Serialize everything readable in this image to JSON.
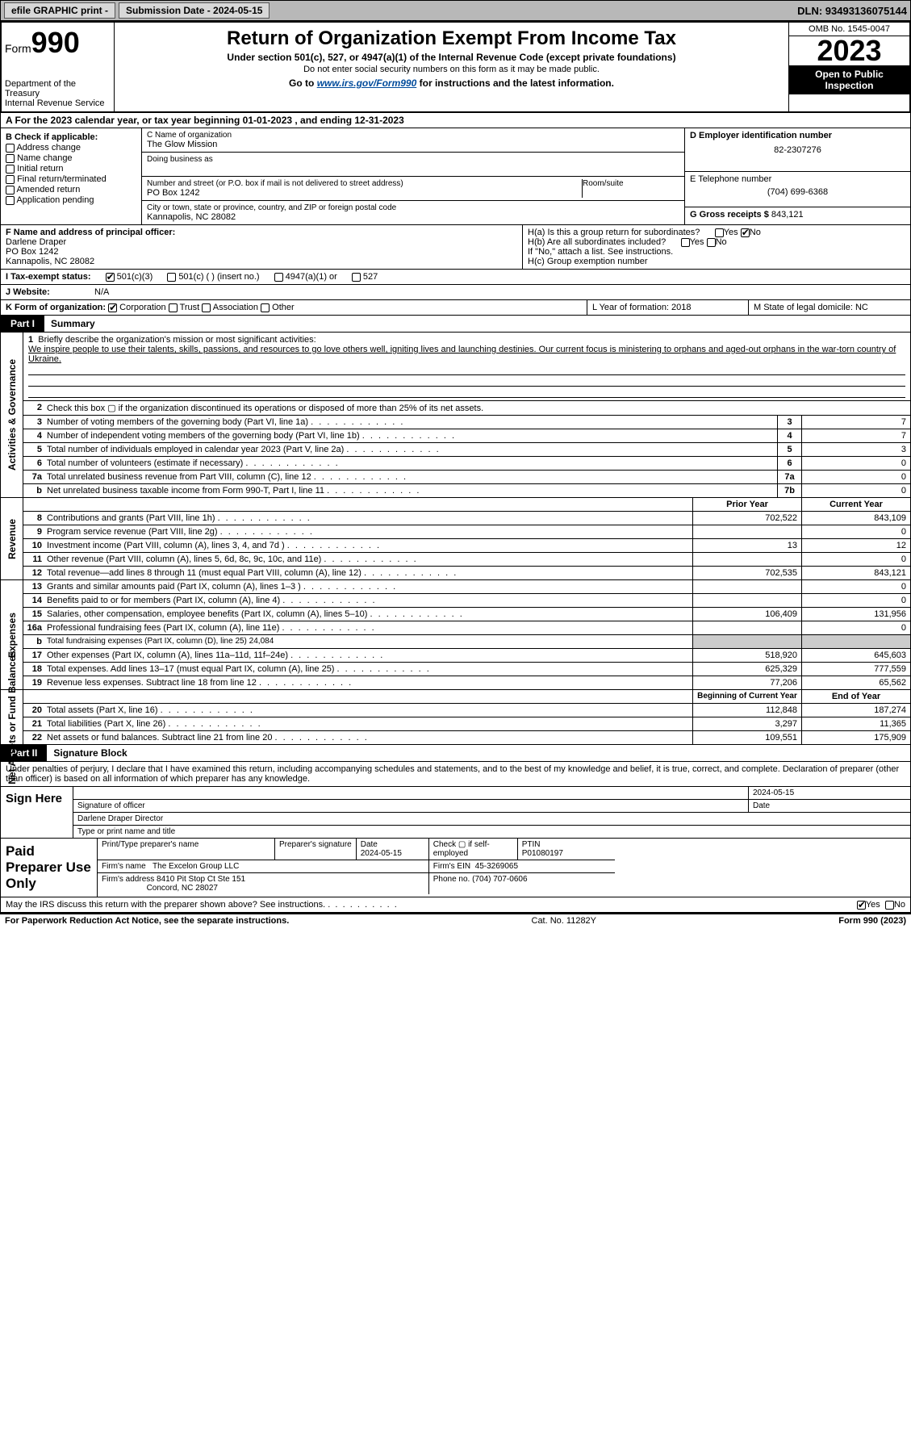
{
  "topbar": {
    "efile": "efile GRAPHIC print -",
    "submission": "Submission Date - 2024-05-15",
    "dln": "DLN: 93493136075144"
  },
  "header": {
    "form_word": "Form",
    "form_num": "990",
    "dept": "Department of the Treasury\nInternal Revenue Service",
    "title": "Return of Organization Exempt From Income Tax",
    "sub": "Under section 501(c), 527, or 4947(a)(1) of the Internal Revenue Code (except private foundations)",
    "note": "Do not enter social security numbers on this form as it may be made public.",
    "goto_pre": "Go to ",
    "goto_link": "www.irs.gov/Form990",
    "goto_post": " for instructions and the latest information.",
    "omb": "OMB No. 1545-0047",
    "year": "2023",
    "open": "Open to Public Inspection"
  },
  "rowA": "A  For the 2023 calendar year, or tax year beginning 01-01-2023    , and ending 12-31-2023",
  "boxB": {
    "title": "B Check if applicable:",
    "opts": [
      "Address change",
      "Name change",
      "Initial return",
      "Final return/terminated",
      "Amended return",
      "Application pending"
    ]
  },
  "boxC": {
    "name_lbl": "C Name of organization",
    "name": "The Glow Mission",
    "dba_lbl": "Doing business as",
    "street_lbl": "Number and street (or P.O. box if mail is not delivered to street address)",
    "street": "PO Box 1242",
    "room_lbl": "Room/suite",
    "city_lbl": "City or town, state or province, country, and ZIP or foreign postal code",
    "city": "Kannapolis, NC  28082"
  },
  "boxD": {
    "lbl": "D Employer identification number",
    "val": "82-2307276"
  },
  "boxE": {
    "lbl": "E Telephone number",
    "val": "(704) 699-6368"
  },
  "boxG": {
    "lbl": "G Gross receipts $",
    "val": "843,121"
  },
  "boxF": {
    "lbl": "F  Name and address of principal officer:",
    "name": "Darlene Draper",
    "street": "PO Box 1242",
    "city": "Kannapolis, NC  28082"
  },
  "boxH": {
    "a": "H(a)  Is this a group return for subordinates?",
    "b": "H(b)  Are all subordinates included?",
    "b_note": "If \"No,\" attach a list. See instructions.",
    "c": "H(c)  Group exemption number"
  },
  "rowI": {
    "lbl": "I   Tax-exempt status:",
    "o1": "501(c)(3)",
    "o2": "501(c) (  ) (insert no.)",
    "o3": "4947(a)(1) or",
    "o4": "527"
  },
  "rowJ": {
    "lbl": "J   Website:",
    "val": "N/A"
  },
  "rowK": {
    "lbl": "K Form of organization:",
    "o1": "Corporation",
    "o2": "Trust",
    "o3": "Association",
    "o4": "Other",
    "L": "L Year of formation: 2018",
    "M": "M State of legal domicile: NC"
  },
  "part1": {
    "tag": "Part I",
    "title": "Summary"
  },
  "mission": {
    "num": "1",
    "prompt": "Briefly describe the organization's mission or most significant activities:",
    "text": "We inspire people to use their talents, skills, passions, and resources to go love others well, igniting lives and launching destinies. Our current focus is ministering to orphans and aged-out orphans in the war-torn country of Ukraine."
  },
  "vlabels": {
    "gov": "Activities & Governance",
    "rev": "Revenue",
    "exp": "Expenses",
    "net": "Net Assets or Fund Balances"
  },
  "gov_lines": [
    {
      "n": "2",
      "d": "Check this box ▢ if the organization discontinued its operations or disposed of more than 25% of its net assets."
    },
    {
      "n": "3",
      "d": "Number of voting members of the governing body (Part VI, line 1a)",
      "box": "3",
      "v": "7"
    },
    {
      "n": "4",
      "d": "Number of independent voting members of the governing body (Part VI, line 1b)",
      "box": "4",
      "v": "7"
    },
    {
      "n": "5",
      "d": "Total number of individuals employed in calendar year 2023 (Part V, line 2a)",
      "box": "5",
      "v": "3"
    },
    {
      "n": "6",
      "d": "Total number of volunteers (estimate if necessary)",
      "box": "6",
      "v": "0"
    },
    {
      "n": "7a",
      "d": "Total unrelated business revenue from Part VIII, column (C), line 12",
      "box": "7a",
      "v": "0"
    },
    {
      "n": "b",
      "d": "Net unrelated business taxable income from Form 990-T, Part I, line 11",
      "box": "7b",
      "v": "0"
    }
  ],
  "col_hdrs": {
    "prior": "Prior Year",
    "current": "Current Year"
  },
  "rev_lines": [
    {
      "n": "8",
      "d": "Contributions and grants (Part VIII, line 1h)",
      "p": "702,522",
      "c": "843,109"
    },
    {
      "n": "9",
      "d": "Program service revenue (Part VIII, line 2g)",
      "p": "",
      "c": "0"
    },
    {
      "n": "10",
      "d": "Investment income (Part VIII, column (A), lines 3, 4, and 7d )",
      "p": "13",
      "c": "12"
    },
    {
      "n": "11",
      "d": "Other revenue (Part VIII, column (A), lines 5, 6d, 8c, 9c, 10c, and 11e)",
      "p": "",
      "c": "0"
    },
    {
      "n": "12",
      "d": "Total revenue—add lines 8 through 11 (must equal Part VIII, column (A), line 12)",
      "p": "702,535",
      "c": "843,121"
    }
  ],
  "exp_lines": [
    {
      "n": "13",
      "d": "Grants and similar amounts paid (Part IX, column (A), lines 1–3 )",
      "p": "",
      "c": "0"
    },
    {
      "n": "14",
      "d": "Benefits paid to or for members (Part IX, column (A), line 4)",
      "p": "",
      "c": "0"
    },
    {
      "n": "15",
      "d": "Salaries, other compensation, employee benefits (Part IX, column (A), lines 5–10)",
      "p": "106,409",
      "c": "131,956"
    },
    {
      "n": "16a",
      "d": "Professional fundraising fees (Part IX, column (A), line 11e)",
      "p": "",
      "c": "0"
    },
    {
      "n": "b",
      "d": "Total fundraising expenses (Part IX, column (D), line 25) 24,084",
      "gray": true
    },
    {
      "n": "17",
      "d": "Other expenses (Part IX, column (A), lines 11a–11d, 11f–24e)",
      "p": "518,920",
      "c": "645,603"
    },
    {
      "n": "18",
      "d": "Total expenses. Add lines 13–17 (must equal Part IX, column (A), line 25)",
      "p": "625,329",
      "c": "777,559"
    },
    {
      "n": "19",
      "d": "Revenue less expenses. Subtract line 18 from line 12",
      "p": "77,206",
      "c": "65,562"
    }
  ],
  "net_hdrs": {
    "beg": "Beginning of Current Year",
    "end": "End of Year"
  },
  "net_lines": [
    {
      "n": "20",
      "d": "Total assets (Part X, line 16)",
      "p": "112,848",
      "c": "187,274"
    },
    {
      "n": "21",
      "d": "Total liabilities (Part X, line 26)",
      "p": "3,297",
      "c": "11,365"
    },
    {
      "n": "22",
      "d": "Net assets or fund balances. Subtract line 21 from line 20",
      "p": "109,551",
      "c": "175,909"
    }
  ],
  "part2": {
    "tag": "Part II",
    "title": "Signature Block"
  },
  "sig_text": "Under penalties of perjury, I declare that I have examined this return, including accompanying schedules and statements, and to the best of my knowledge and belief, it is true, correct, and complete. Declaration of preparer (other than officer) is based on all information of which preparer has any knowledge.",
  "sign": {
    "lbl": "Sign Here",
    "date": "2024-05-15",
    "sig_lbl": "Signature of officer",
    "name": "Darlene Draper  Director",
    "type_lbl": "Type or print name and title",
    "date_lbl": "Date"
  },
  "paid": {
    "lbl": "Paid Preparer Use Only",
    "print_lbl": "Print/Type preparer's name",
    "sig_lbl": "Preparer's signature",
    "date_lbl": "Date",
    "date": "2024-05-15",
    "check_lbl": "Check ▢ if self-employed",
    "ptin_lbl": "PTIN",
    "ptin": "P01080197",
    "firm_name_lbl": "Firm's name",
    "firm_name": "The Excelon Group LLC",
    "firm_ein_lbl": "Firm's EIN",
    "firm_ein": "45-3269065",
    "firm_addr_lbl": "Firm's address",
    "firm_addr1": "8410 Pit Stop Ct Ste 151",
    "firm_addr2": "Concord, NC  28027",
    "phone_lbl": "Phone no.",
    "phone": "(704) 707-0606"
  },
  "discuss": "May the IRS discuss this return with the preparer shown above? See instructions.",
  "footer": {
    "left": "For Paperwork Reduction Act Notice, see the separate instructions.",
    "mid": "Cat. No. 11282Y",
    "right": "Form 990 (2023)"
  },
  "yes": "Yes",
  "no": "No"
}
